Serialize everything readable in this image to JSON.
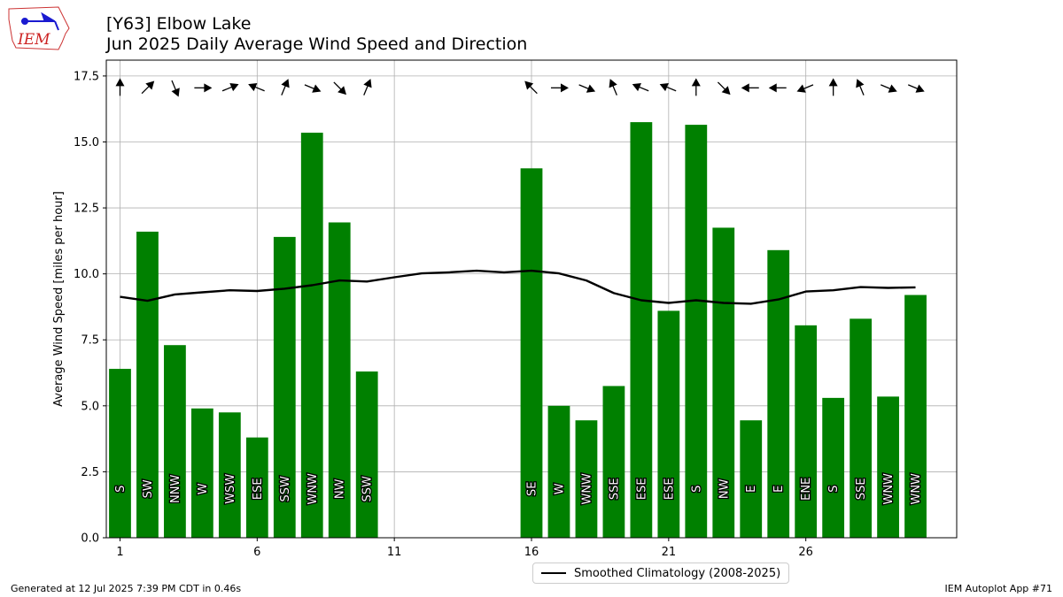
{
  "logo": {
    "text": "IEM"
  },
  "title": {
    "line1": "[Y63] Elbow Lake",
    "line2": "Jun 2025 Daily Average Wind Speed and Direction"
  },
  "footer": {
    "left": "Generated at 12 Jul 2025 7:39 PM CDT in 0.46s",
    "right": "IEM Autoplot App #71"
  },
  "legend": {
    "label": "Smoothed Climatology (2008-2025)"
  },
  "chart_data": {
    "type": "bar",
    "ylabel": "Average Wind Speed [miles per hour]",
    "xlabel": "",
    "xlim": [
      0.5,
      31.5
    ],
    "ylim": [
      0,
      18.1
    ],
    "x_ticks": [
      1,
      6,
      11,
      16,
      21,
      26
    ],
    "y_ticks": [
      "0.0",
      "2.5",
      "5.0",
      "7.5",
      "10.0",
      "12.5",
      "15.0",
      "17.5"
    ],
    "grid": true,
    "bar_color": "#008000",
    "series": [
      {
        "name": "Daily Average Wind Speed",
        "days": [
          1,
          2,
          3,
          4,
          5,
          6,
          7,
          8,
          9,
          10,
          16,
          17,
          18,
          19,
          20,
          21,
          22,
          23,
          24,
          25,
          26,
          27,
          28,
          29,
          30
        ],
        "values": [
          6.4,
          11.6,
          7.3,
          4.9,
          4.75,
          3.8,
          11.4,
          15.35,
          11.95,
          6.3,
          14.0,
          5.0,
          4.45,
          5.75,
          15.75,
          8.6,
          15.65,
          11.75,
          4.45,
          10.9,
          8.05,
          5.3,
          8.3,
          5.35,
          9.2
        ],
        "directions": [
          "S",
          "SW",
          "NNW",
          "W",
          "WSW",
          "ESE",
          "SSW",
          "WNW",
          "NW",
          "SSW",
          "SE",
          "W",
          "WNW",
          "SSE",
          "ESE",
          "ESE",
          "S",
          "NW",
          "E",
          "E",
          "ENE",
          "S",
          "SSE",
          "WNW",
          "WNW"
        ]
      }
    ],
    "climatology": {
      "name": "Smoothed Climatology (2008-2025)",
      "color": "#000000",
      "x": [
        1,
        2,
        3,
        4,
        5,
        6,
        7,
        8,
        9,
        10,
        11,
        12,
        13,
        14,
        15,
        16,
        17,
        18,
        19,
        20,
        21,
        22,
        23,
        24,
        25,
        26,
        27,
        28,
        29,
        30
      ],
      "y": [
        9.13,
        8.98,
        9.22,
        9.3,
        9.38,
        9.35,
        9.44,
        9.57,
        9.75,
        9.71,
        9.87,
        10.02,
        10.06,
        10.12,
        10.06,
        10.12,
        10.02,
        9.75,
        9.27,
        9.0,
        8.9,
        9.0,
        8.9,
        8.87,
        9.03,
        9.33,
        9.38,
        9.5,
        9.47,
        9.49
      ]
    }
  }
}
